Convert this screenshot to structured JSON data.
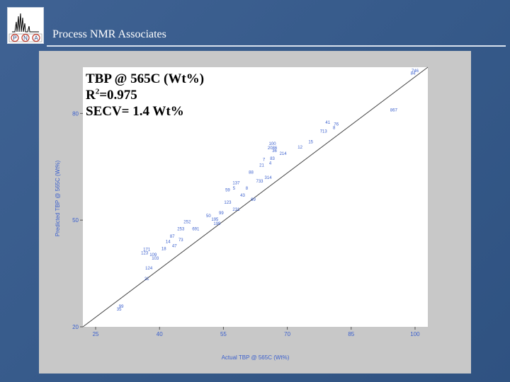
{
  "header": {
    "title": "Process NMR Associates",
    "logo_letters": [
      "P",
      "N",
      "A"
    ]
  },
  "annotation": {
    "line1": "TBP @ 565C (Wt%)",
    "r2_prefix": "R",
    "r2_sup": "2",
    "r2_value": "=0.975",
    "line3": "SECV= 1.4 Wt%"
  },
  "colors": {
    "background": "#365a8a",
    "frame": "#c8c8c8",
    "plot_bg": "#ffffff",
    "label_blue": "#3a5fcd",
    "line": "#444444"
  },
  "chart_data": {
    "type": "scatter",
    "xlabel": "Actual TBP @ 565C (Wt%)",
    "ylabel": "Predicted TBP @ 565C (Wt%)",
    "xlim": [
      22,
      103
    ],
    "ylim": [
      20,
      93
    ],
    "xticks": [
      25,
      40,
      55,
      70,
      85,
      100
    ],
    "yticks": [
      20,
      50,
      80
    ],
    "grid": false,
    "fit_line": {
      "x": [
        22,
        103
      ],
      "y": [
        20,
        93
      ]
    },
    "points": [
      {
        "x": 100,
        "y": 92.0,
        "label": "746"
      },
      {
        "x": 99.5,
        "y": 91.3,
        "label": "84"
      },
      {
        "x": 95,
        "y": 81.0,
        "label": "867"
      },
      {
        "x": 79.5,
        "y": 77.5,
        "label": "41"
      },
      {
        "x": 81.5,
        "y": 77.0,
        "label": "76"
      },
      {
        "x": 81.0,
        "y": 76.0,
        "label": "8"
      },
      {
        "x": 78.5,
        "y": 75.0,
        "label": "713"
      },
      {
        "x": 75.5,
        "y": 72.0,
        "label": "15"
      },
      {
        "x": 73.0,
        "y": 70.5,
        "label": "12"
      },
      {
        "x": 66.5,
        "y": 71.5,
        "label": "100"
      },
      {
        "x": 66.5,
        "y": 70.3,
        "label": "2086"
      },
      {
        "x": 67.0,
        "y": 69.5,
        "label": "36"
      },
      {
        "x": 69.0,
        "y": 68.7,
        "label": "214"
      },
      {
        "x": 66.5,
        "y": 67.3,
        "label": "83"
      },
      {
        "x": 64.0,
        "y": 65.5,
        "label": "21"
      },
      {
        "x": 61.5,
        "y": 63.5,
        "label": "88"
      },
      {
        "x": 65.5,
        "y": 62.0,
        "label": "314"
      },
      {
        "x": 63.5,
        "y": 61.0,
        "label": "733"
      },
      {
        "x": 58.0,
        "y": 60.5,
        "label": "137"
      },
      {
        "x": 56.0,
        "y": 58.5,
        "label": "59"
      },
      {
        "x": 59.5,
        "y": 57.0,
        "label": "43"
      },
      {
        "x": 62.0,
        "y": 55.8,
        "label": "69"
      },
      {
        "x": 56.0,
        "y": 55.0,
        "label": "123"
      },
      {
        "x": 58.0,
        "y": 53.0,
        "label": "231"
      },
      {
        "x": 54.5,
        "y": 52.0,
        "label": "99"
      },
      {
        "x": 51.5,
        "y": 51.2,
        "label": "50"
      },
      {
        "x": 53.0,
        "y": 50.2,
        "label": "195"
      },
      {
        "x": 53.5,
        "y": 49.0,
        "label": "199"
      },
      {
        "x": 46.5,
        "y": 49.5,
        "label": "252"
      },
      {
        "x": 48.5,
        "y": 47.5,
        "label": "691"
      },
      {
        "x": 45.0,
        "y": 47.5,
        "label": "253"
      },
      {
        "x": 45.0,
        "y": 44.5,
        "label": "73"
      },
      {
        "x": 43.0,
        "y": 45.5,
        "label": "87"
      },
      {
        "x": 42.0,
        "y": 44.0,
        "label": "14"
      },
      {
        "x": 43.5,
        "y": 42.8,
        "label": "47"
      },
      {
        "x": 41.0,
        "y": 42.0,
        "label": "18"
      },
      {
        "x": 37.0,
        "y": 41.8,
        "label": "171"
      },
      {
        "x": 36.5,
        "y": 40.8,
        "label": "123"
      },
      {
        "x": 38.5,
        "y": 40.3,
        "label": "109"
      },
      {
        "x": 39.0,
        "y": 39.3,
        "label": "103"
      },
      {
        "x": 37.5,
        "y": 36.5,
        "label": "124"
      },
      {
        "x": 37.0,
        "y": 33.5,
        "label": "21"
      },
      {
        "x": 31.0,
        "y": 25.8,
        "label": "99"
      },
      {
        "x": 30.5,
        "y": 25.0,
        "label": "35"
      },
      {
        "x": 64.5,
        "y": 67.0,
        "label": "7"
      },
      {
        "x": 66.0,
        "y": 66.0,
        "label": "4"
      },
      {
        "x": 60.5,
        "y": 59.0,
        "label": "8"
      },
      {
        "x": 57.5,
        "y": 59.0,
        "label": "5"
      }
    ]
  }
}
